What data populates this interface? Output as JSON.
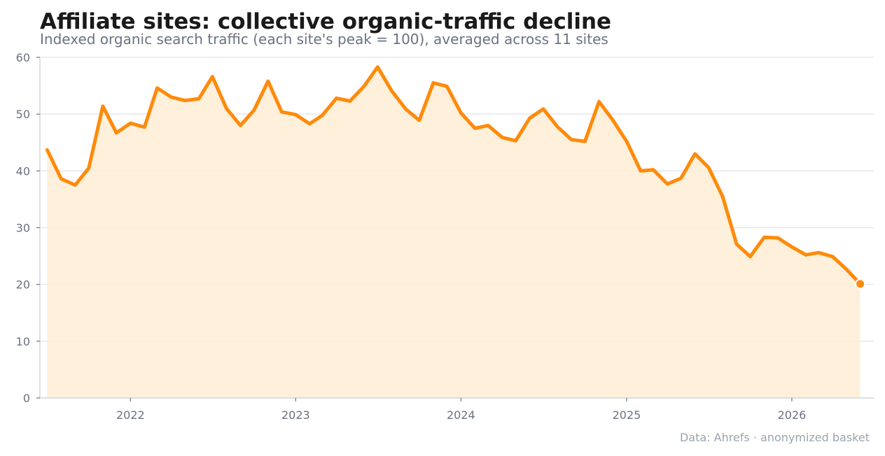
{
  "chart_data": {
    "type": "area",
    "title": "Affiliate sites: collective organic-traffic decline",
    "subtitle": "Indexed organic search traffic (each site's peak = 100), averaged across 11 sites",
    "source": "Data: Ahrefs · anonymized basket",
    "xlabel": "",
    "ylabel": "",
    "ylim": [
      0,
      60
    ],
    "xlim": [
      "2021-06-15",
      "2026-07-01"
    ],
    "y_ticks": [
      0,
      10,
      20,
      30,
      40,
      50,
      60
    ],
    "x_ticks": [
      "2022",
      "2023",
      "2024",
      "2025",
      "2026"
    ],
    "grid": "horizontal",
    "colors": {
      "line": "#ff8a0a",
      "fill": "#ffedd5",
      "grid": "#e5e7eb"
    },
    "series": [
      {
        "x": [
          "2021-07",
          "2021-08",
          "2021-09",
          "2021-10",
          "2021-11",
          "2021-12",
          "2022-01",
          "2022-02",
          "2022-03",
          "2022-04",
          "2022-05",
          "2022-06",
          "2022-07",
          "2022-08",
          "2022-09",
          "2022-10",
          "2022-11",
          "2022-12",
          "2023-01",
          "2023-02",
          "2023-03",
          "2023-04",
          "2023-05",
          "2023-06",
          "2023-07",
          "2023-08",
          "2023-09",
          "2023-10",
          "2023-11",
          "2023-12",
          "2024-01",
          "2024-02",
          "2024-03",
          "2024-04",
          "2024-05",
          "2024-06",
          "2024-07",
          "2024-08",
          "2024-09",
          "2024-10",
          "2024-11",
          "2024-12",
          "2025-01",
          "2025-02",
          "2025-03",
          "2025-04",
          "2025-05",
          "2025-06",
          "2025-07",
          "2025-08",
          "2025-09",
          "2025-10",
          "2025-11",
          "2025-12",
          "2026-01",
          "2026-02",
          "2026-03",
          "2026-04",
          "2026-05",
          "2026-06"
        ],
        "values": [
          43.7,
          38.6,
          37.5,
          40.5,
          51.4,
          46.7,
          48.4,
          47.7,
          54.6,
          53.0,
          52.4,
          52.7,
          56.6,
          51.0,
          48.0,
          50.7,
          55.8,
          50.4,
          49.9,
          48.3,
          49.8,
          52.8,
          52.3,
          54.9,
          58.3,
          54.1,
          50.9,
          48.9,
          55.5,
          54.9,
          50.2,
          47.5,
          48.0,
          45.9,
          45.3,
          49.3,
          50.9,
          47.8,
          45.5,
          45.2,
          52.2,
          49.0,
          45.2,
          40.0,
          40.2,
          37.7,
          38.7,
          43.0,
          40.6,
          35.5,
          27.1,
          24.9,
          28.3,
          28.2,
          26.6,
          25.2,
          25.6,
          24.9,
          22.7,
          20.1
        ]
      }
    ]
  }
}
